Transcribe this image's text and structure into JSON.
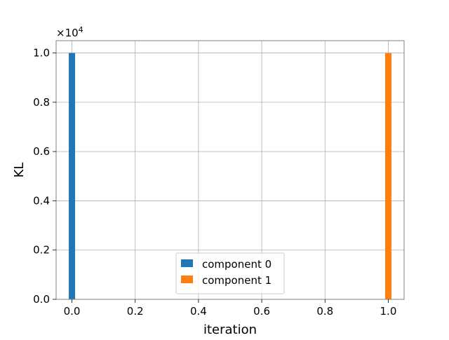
{
  "chart_data": {
    "type": "bar",
    "xlabel": "iteration",
    "ylabel": "KL",
    "y_offset_base": "×10",
    "y_offset_exponent": "4",
    "xlim": [
      -0.05,
      1.05
    ],
    "ylim": [
      0,
      1.05
    ],
    "x_ticks": [
      0.0,
      0.2,
      0.4,
      0.6,
      0.8,
      1.0
    ],
    "x_tick_labels": [
      "0.0",
      "0.2",
      "0.4",
      "0.6",
      "0.8",
      "1.0"
    ],
    "y_ticks": [
      0.0,
      0.2,
      0.4,
      0.6,
      0.8,
      1.0
    ],
    "y_tick_labels": [
      "0.0",
      "0.2",
      "0.4",
      "0.6",
      "0.8",
      "1.0"
    ],
    "grid": true,
    "legend_position": "bottom-center",
    "bar_width": 0.02,
    "series": [
      {
        "name": "component 0",
        "color": "#1f77b4",
        "x": [
          0.0
        ],
        "values": [
          1.0
        ]
      },
      {
        "name": "component 1",
        "color": "#ff7f0e",
        "x": [
          1.0
        ],
        "values": [
          1.0
        ]
      }
    ]
  }
}
